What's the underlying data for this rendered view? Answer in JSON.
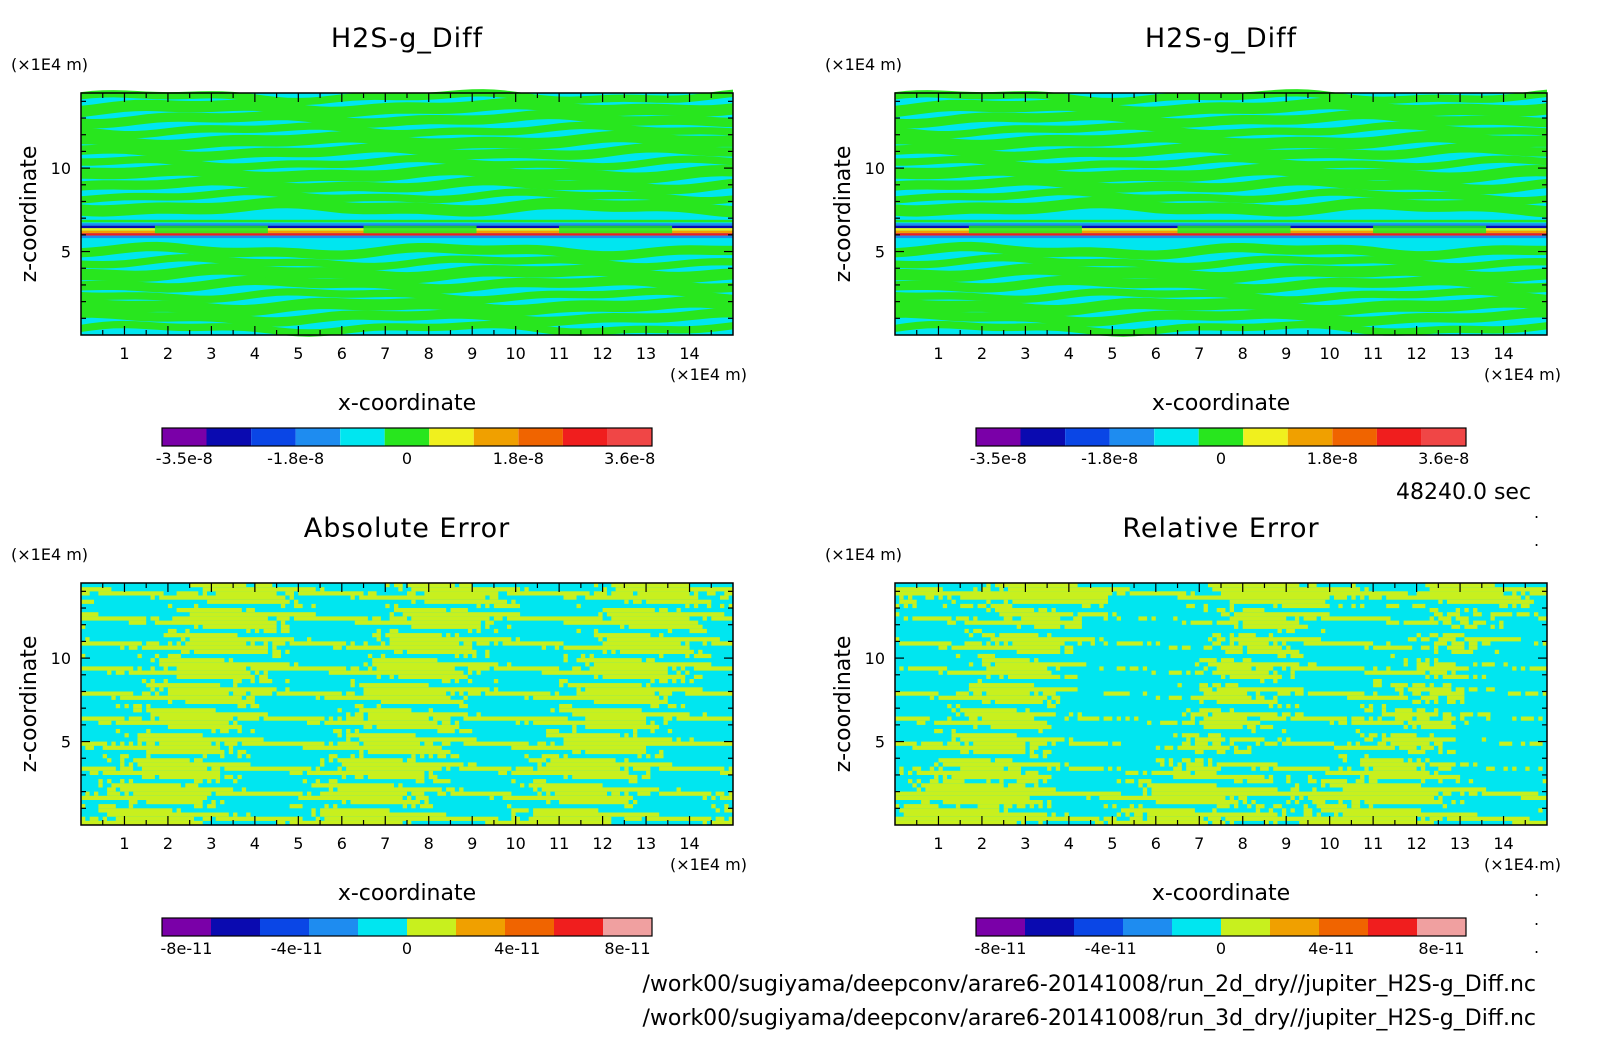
{
  "time_label": "48240.0 sec",
  "footer": {
    "path_2d": "/work00/sugiyama/deepconv/arare6-20141008/run_2d_dry//jupiter_H2S-g_Diff.nc",
    "path_3d": "/work00/sugiyama/deepconv/arare6-20141008/run_3d_dry//jupiter_H2S-g_Diff.nc"
  },
  "chart_data": [
    {
      "id": "top-left",
      "type": "heatmap",
      "title": "H2S-g_Diff",
      "xlabel": "x-coordinate",
      "ylabel": "z-coordinate",
      "x_unit": "(×1E4 m)",
      "z_unit": "(×1E4 m)",
      "xlim": [
        0,
        15
      ],
      "zlim": [
        0,
        14.5
      ],
      "x_ticks": [
        "1",
        "2",
        "3",
        "4",
        "5",
        "6",
        "7",
        "8",
        "9",
        "10",
        "11",
        "12",
        "13",
        "14"
      ],
      "z_ticks": [
        "5",
        "10"
      ],
      "field": "bands",
      "colorbar": {
        "colors": [
          "#7a00a8",
          "#0a0ab0",
          "#0a46e6",
          "#1e8cf0",
          "#00e6f0",
          "#28e61e",
          "#f0f01e",
          "#f0a000",
          "#f06400",
          "#f01e1e",
          "#f04646"
        ],
        "labels": [
          "-3.5e-8",
          "-1.8e-8",
          "0",
          "1.8e-8",
          "3.6e-8"
        ]
      }
    },
    {
      "id": "top-right",
      "type": "heatmap",
      "title": "H2S-g_Diff",
      "xlabel": "x-coordinate",
      "ylabel": "z-coordinate",
      "x_unit": "(×1E4 m)",
      "z_unit": "(×1E4 m)",
      "xlim": [
        0,
        15
      ],
      "zlim": [
        0,
        14.5
      ],
      "x_ticks": [
        "1",
        "2",
        "3",
        "4",
        "5",
        "6",
        "7",
        "8",
        "9",
        "10",
        "11",
        "12",
        "13",
        "14"
      ],
      "z_ticks": [
        "5",
        "10"
      ],
      "field": "bands",
      "colorbar": {
        "colors": [
          "#7a00a8",
          "#0a0ab0",
          "#0a46e6",
          "#1e8cf0",
          "#00e6f0",
          "#28e61e",
          "#f0f01e",
          "#f0a000",
          "#f06400",
          "#f01e1e",
          "#f04646"
        ],
        "labels": [
          "-3.5e-8",
          "-1.8e-8",
          "0",
          "1.8e-8",
          "3.6e-8"
        ]
      }
    },
    {
      "id": "bottom-left",
      "type": "heatmap",
      "title": "Absolute Error",
      "xlabel": "x-coordinate",
      "ylabel": "z-coordinate",
      "x_unit": "(×1E4 m)",
      "z_unit": "(×1E4 m)",
      "xlim": [
        0,
        15
      ],
      "zlim": [
        0,
        14.5
      ],
      "x_ticks": [
        "1",
        "2",
        "3",
        "4",
        "5",
        "6",
        "7",
        "8",
        "9",
        "10",
        "11",
        "12",
        "13",
        "14"
      ],
      "z_ticks": [
        "5",
        "10"
      ],
      "field": "noise-striped",
      "colorbar": {
        "colors": [
          "#7a00a8",
          "#0a0ab0",
          "#0a46e6",
          "#1e8cf0",
          "#00e6f0",
          "#c8f01e",
          "#f0a000",
          "#f06400",
          "#f01e1e",
          "#f0a0a0"
        ],
        "labels": [
          "-8e-11",
          "-4e-11",
          "0",
          "4e-11",
          "8e-11"
        ]
      }
    },
    {
      "id": "bottom-right",
      "type": "heatmap",
      "title": "Relative Error",
      "xlabel": "x-coordinate",
      "ylabel": "z-coordinate",
      "x_unit": "(×1E4 m)",
      "z_unit": "(×1E4 m)",
      "xlim": [
        0,
        15
      ],
      "zlim": [
        0,
        14.5
      ],
      "x_ticks": [
        "1",
        "2",
        "3",
        "4",
        "5",
        "6",
        "7",
        "8",
        "9",
        "10",
        "11",
        "12",
        "13",
        "14"
      ],
      "z_ticks": [
        "5",
        "10"
      ],
      "field": "noise-patchy",
      "colorbar": {
        "colors": [
          "#7a00a8",
          "#0a0ab0",
          "#0a46e6",
          "#1e8cf0",
          "#00e6f0",
          "#c8f01e",
          "#f0a000",
          "#f06400",
          "#f01e1e",
          "#f0a0a0"
        ],
        "labels": [
          "-8e-11",
          "-4e-11",
          "0",
          "4e-11",
          "8e-11"
        ]
      }
    }
  ]
}
